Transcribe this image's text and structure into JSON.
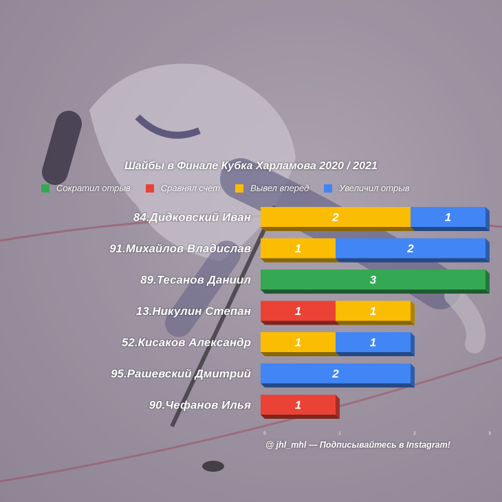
{
  "chart_data": {
    "type": "bar",
    "orientation": "horizontal",
    "stacked": true,
    "title": "Шайбы в Финале Кубка Харламова 2020 / 2021",
    "categories": [
      "84.Дидковский Иван",
      "91.Михайлов Владислав",
      "89.Тесанов Даниил",
      "13.Никулин Степан",
      "52.Кисаков Александр",
      "95.Рашевский Дмитрий",
      "90.Чефанов Илья"
    ],
    "series": [
      {
        "name": "Сократил отрыв",
        "color": "#34a853",
        "values": [
          0,
          0,
          3,
          0,
          0,
          0,
          0
        ]
      },
      {
        "name": "Сравнял счет",
        "color": "#ea4335",
        "values": [
          0,
          0,
          0,
          1,
          0,
          0,
          1
        ]
      },
      {
        "name": "Вывел вперед",
        "color": "#fbbc04",
        "values": [
          2,
          1,
          0,
          1,
          1,
          0,
          0
        ]
      },
      {
        "name": "Увеличил отрыв",
        "color": "#4285f4",
        "values": [
          1,
          2,
          0,
          0,
          1,
          2,
          0
        ]
      }
    ],
    "xlim": [
      0,
      3
    ],
    "xticks": [
      "0",
      "1",
      "2",
      "3"
    ],
    "legend_position": "top",
    "grid": false
  },
  "credit": "@ jhl_mhl — Подписывайтесь в Instagram!"
}
